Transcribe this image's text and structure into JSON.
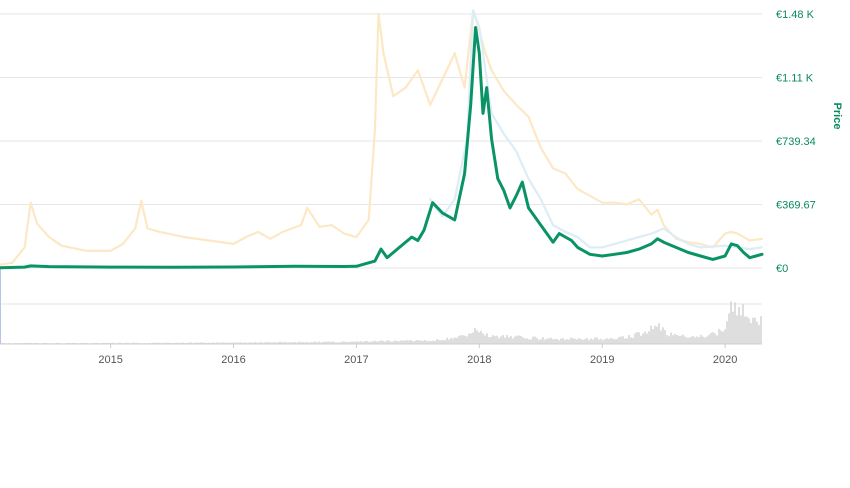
{
  "chart_data": {
    "type": "line",
    "title": "",
    "xlabel": "",
    "ylabel": "Price",
    "y_tick_labels": [
      "€0",
      "€369.67",
      "€739.34",
      "€1.11 K",
      "€1.48 K"
    ],
    "y_tick_values": [
      0,
      369.67,
      739.34,
      1109.01,
      1478.68
    ],
    "ylim": [
      0,
      1560
    ],
    "x_tick_labels": [
      "2015",
      "2016",
      "2017",
      "2018",
      "2019",
      "2020"
    ],
    "x_tick_values": [
      2015,
      2016,
      2017,
      2018,
      2019,
      2020
    ],
    "xlim": [
      2014.1,
      2020.3
    ],
    "grid": true,
    "legend": "none",
    "colors": {
      "price": "#0a9466",
      "market_cap": "#fde8c6",
      "secondary": "#dcedf8",
      "volume": "#cfcfcf",
      "grid": "#e6e6e6",
      "axis_text": "#098a5e"
    },
    "series": [
      {
        "key": "market_cap",
        "style": "faint",
        "points": [
          [
            2014.1,
            20
          ],
          [
            2014.2,
            30
          ],
          [
            2014.3,
            120
          ],
          [
            2014.35,
            380
          ],
          [
            2014.4,
            260
          ],
          [
            2014.5,
            180
          ],
          [
            2014.6,
            130
          ],
          [
            2014.8,
            100
          ],
          [
            2015.0,
            100
          ],
          [
            2015.1,
            140
          ],
          [
            2015.2,
            230
          ],
          [
            2015.25,
            390
          ],
          [
            2015.3,
            230
          ],
          [
            2015.4,
            210
          ],
          [
            2015.6,
            180
          ],
          [
            2015.8,
            160
          ],
          [
            2016.0,
            140
          ],
          [
            2016.1,
            180
          ],
          [
            2016.2,
            210
          ],
          [
            2016.3,
            170
          ],
          [
            2016.4,
            210
          ],
          [
            2016.55,
            250
          ],
          [
            2016.6,
            350
          ],
          [
            2016.7,
            240
          ],
          [
            2016.8,
            250
          ],
          [
            2016.9,
            200
          ],
          [
            2017.0,
            180
          ],
          [
            2017.1,
            280
          ],
          [
            2017.15,
            800
          ],
          [
            2017.18,
            1480
          ],
          [
            2017.22,
            1250
          ],
          [
            2017.3,
            1000
          ],
          [
            2017.4,
            1050
          ],
          [
            2017.5,
            1150
          ],
          [
            2017.6,
            950
          ],
          [
            2017.7,
            1100
          ],
          [
            2017.8,
            1250
          ],
          [
            2017.88,
            1050
          ],
          [
            2017.95,
            1500
          ],
          [
            2018.0,
            1380
          ],
          [
            2018.05,
            1250
          ],
          [
            2018.1,
            1150
          ],
          [
            2018.2,
            1030
          ],
          [
            2018.3,
            950
          ],
          [
            2018.4,
            880
          ],
          [
            2018.5,
            700
          ],
          [
            2018.6,
            580
          ],
          [
            2018.7,
            550
          ],
          [
            2018.8,
            460
          ],
          [
            2018.9,
            420
          ],
          [
            2019.0,
            380
          ],
          [
            2019.1,
            380
          ],
          [
            2019.2,
            370
          ],
          [
            2019.3,
            400
          ],
          [
            2019.4,
            310
          ],
          [
            2019.45,
            340
          ],
          [
            2019.5,
            250
          ],
          [
            2019.6,
            170
          ],
          [
            2019.7,
            150
          ],
          [
            2019.8,
            140
          ],
          [
            2019.9,
            120
          ],
          [
            2020.0,
            200
          ],
          [
            2020.05,
            210
          ],
          [
            2020.1,
            200
          ],
          [
            2020.2,
            160
          ],
          [
            2020.3,
            170
          ]
        ]
      },
      {
        "key": "secondary",
        "style": "faint",
        "points": [
          [
            2017.6,
            400
          ],
          [
            2017.7,
            300
          ],
          [
            2017.8,
            400
          ],
          [
            2017.9,
            750
          ],
          [
            2017.95,
            1500
          ],
          [
            2018.0,
            1400
          ],
          [
            2018.05,
            1150
          ],
          [
            2018.1,
            900
          ],
          [
            2018.2,
            780
          ],
          [
            2018.3,
            680
          ],
          [
            2018.4,
            520
          ],
          [
            2018.5,
            400
          ],
          [
            2018.6,
            250
          ],
          [
            2018.7,
            210
          ],
          [
            2018.8,
            180
          ],
          [
            2018.9,
            120
          ],
          [
            2019.0,
            120
          ],
          [
            2019.2,
            160
          ],
          [
            2019.4,
            200
          ],
          [
            2019.5,
            230
          ],
          [
            2019.6,
            180
          ],
          [
            2019.7,
            140
          ],
          [
            2019.8,
            120
          ],
          [
            2020.0,
            130
          ],
          [
            2020.1,
            120
          ],
          [
            2020.2,
            110
          ],
          [
            2020.3,
            120
          ]
        ]
      },
      {
        "key": "price",
        "style": "main",
        "points": [
          [
            2014.1,
            2
          ],
          [
            2014.3,
            5
          ],
          [
            2014.35,
            12
          ],
          [
            2014.5,
            8
          ],
          [
            2015.0,
            5
          ],
          [
            2015.5,
            4
          ],
          [
            2016.0,
            6
          ],
          [
            2016.5,
            10
          ],
          [
            2016.9,
            9
          ],
          [
            2017.0,
            10
          ],
          [
            2017.15,
            40
          ],
          [
            2017.2,
            110
          ],
          [
            2017.25,
            60
          ],
          [
            2017.35,
            120
          ],
          [
            2017.45,
            180
          ],
          [
            2017.5,
            160
          ],
          [
            2017.55,
            220
          ],
          [
            2017.62,
            380
          ],
          [
            2017.7,
            320
          ],
          [
            2017.8,
            280
          ],
          [
            2017.88,
            550
          ],
          [
            2017.93,
            950
          ],
          [
            2017.97,
            1400
          ],
          [
            2018.0,
            1250
          ],
          [
            2018.03,
            900
          ],
          [
            2018.06,
            1050
          ],
          [
            2018.1,
            750
          ],
          [
            2018.15,
            520
          ],
          [
            2018.2,
            450
          ],
          [
            2018.25,
            350
          ],
          [
            2018.3,
            420
          ],
          [
            2018.35,
            500
          ],
          [
            2018.4,
            350
          ],
          [
            2018.5,
            250
          ],
          [
            2018.6,
            150
          ],
          [
            2018.65,
            200
          ],
          [
            2018.75,
            160
          ],
          [
            2018.8,
            120
          ],
          [
            2018.9,
            80
          ],
          [
            2019.0,
            70
          ],
          [
            2019.1,
            80
          ],
          [
            2019.2,
            90
          ],
          [
            2019.3,
            110
          ],
          [
            2019.4,
            140
          ],
          [
            2019.45,
            170
          ],
          [
            2019.5,
            150
          ],
          [
            2019.6,
            120
          ],
          [
            2019.7,
            90
          ],
          [
            2019.8,
            70
          ],
          [
            2019.9,
            50
          ],
          [
            2020.0,
            70
          ],
          [
            2020.05,
            140
          ],
          [
            2020.1,
            130
          ],
          [
            2020.15,
            90
          ],
          [
            2020.2,
            60
          ],
          [
            2020.25,
            70
          ],
          [
            2020.3,
            80
          ]
        ]
      }
    ],
    "volume": {
      "points": [
        [
          2014.1,
          0.02
        ],
        [
          2015.0,
          0.02
        ],
        [
          2016.0,
          0.03
        ],
        [
          2017.0,
          0.05
        ],
        [
          2017.6,
          0.08
        ],
        [
          2017.85,
          0.15
        ],
        [
          2017.95,
          0.3
        ],
        [
          2018.0,
          0.25
        ],
        [
          2018.1,
          0.18
        ],
        [
          2018.3,
          0.15
        ],
        [
          2018.6,
          0.1
        ],
        [
          2018.9,
          0.12
        ],
        [
          2019.1,
          0.1
        ],
        [
          2019.2,
          0.15
        ],
        [
          2019.35,
          0.25
        ],
        [
          2019.45,
          0.38
        ],
        [
          2019.55,
          0.2
        ],
        [
          2019.7,
          0.15
        ],
        [
          2019.9,
          0.2
        ],
        [
          2020.0,
          0.35
        ],
        [
          2020.05,
          0.9
        ],
        [
          2020.1,
          0.6
        ],
        [
          2020.15,
          0.7
        ],
        [
          2020.2,
          0.55
        ],
        [
          2020.25,
          0.45
        ],
        [
          2020.3,
          0.5
        ]
      ]
    }
  }
}
